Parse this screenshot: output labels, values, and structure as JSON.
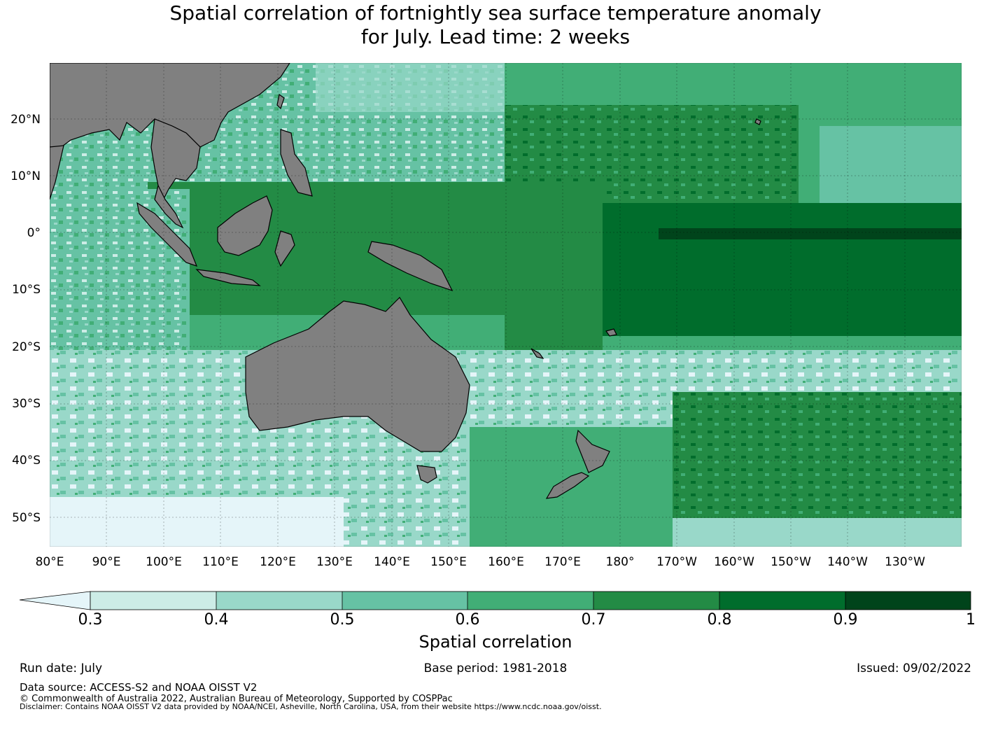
{
  "title_line1": "Spatial correlation of fortnightly sea surface temperature anomaly",
  "title_line2": "for July. Lead time: 2 weeks",
  "map": {
    "land_color": "#808080",
    "lat_labels": [
      "20°N",
      "10°N",
      "0°",
      "10°S",
      "20°S",
      "30°S",
      "40°S",
      "50°S"
    ],
    "lon_labels": [
      "80°E",
      "90°E",
      "100°E",
      "110°E",
      "120°E",
      "130°E",
      "140°E",
      "150°E",
      "160°E",
      "170°E",
      "180°",
      "170°W",
      "160°W",
      "150°W",
      "140°W",
      "130°W"
    ]
  },
  "colorbar": {
    "title": "Spatial correlation",
    "ticks": [
      "0.3",
      "0.4",
      "0.5",
      "0.6",
      "0.7",
      "0.8",
      "0.9",
      "1"
    ],
    "under_color": "#e5f5f9",
    "colors": [
      "#ccece6",
      "#99d8c9",
      "#66c2a4",
      "#41ae76",
      "#238b45",
      "#006d2c",
      "#00441b"
    ]
  },
  "footer": {
    "run_date": "Run date: July",
    "base_period": "Base period: 1981-2018",
    "issued": "Issued: 09/02/2022",
    "data_source": "Data source: ACCESS-S2 and NOAA OISST V2",
    "copyright": "© Commonwealth of Australia 2022, Australian Bureau of Meteorology, Supported by COSPPac",
    "disclaimer": "Disclaimer: Contains NOAA OISST V2 data provided by NOAA/NCEI, Asheville, North Carolina, USA, from their website https://www.ncdc.noaa.gov/oisst."
  }
}
